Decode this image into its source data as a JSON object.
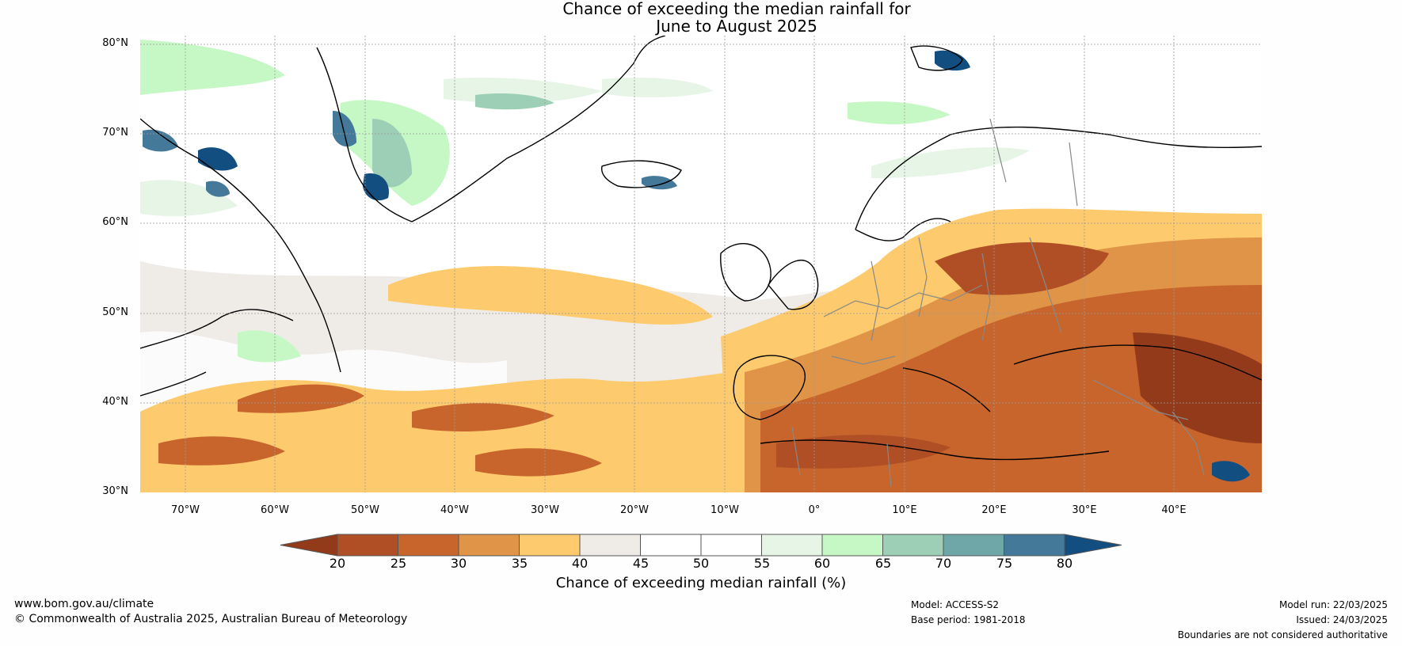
{
  "title": {
    "line1": "Chance of exceeding the median rainfall for",
    "line2": "June to August 2025"
  },
  "lat_labels": [
    "80°N",
    "70°N",
    "60°N",
    "50°N",
    "40°N",
    "30°N"
  ],
  "lon_labels": [
    "70°W",
    "60°W",
    "50°W",
    "40°W",
    "30°W",
    "20°W",
    "10°W",
    "0°",
    "10°E",
    "20°E",
    "30°E",
    "40°E"
  ],
  "colorbar": {
    "ticks": [
      "20",
      "25",
      "30",
      "35",
      "40",
      "45",
      "50",
      "55",
      "60",
      "65",
      "70",
      "75",
      "80"
    ],
    "colors": [
      "#933a1a",
      "#b04f25",
      "#c8652c",
      "#e09448",
      "#fdcb6e",
      "#efece8",
      "#ffffff",
      "#ffffff",
      "#e6f5e6",
      "#c6f8c6",
      "#9ccfb5",
      "#6fa6a8",
      "#44799a",
      "#124e80"
    ],
    "label": "Chance of exceeding median rainfall (%)"
  },
  "footer": {
    "website": "www.bom.gov.au/climate",
    "copyright": "© Commonwealth of Australia 2025, Australian Bureau of Meteorology",
    "model": "Model: ACCESS-S2",
    "base_period": "Base period: 1981-2018",
    "model_run": "Model run: 22/03/2025",
    "issued": "Issued: 24/03/2025",
    "disclaimer": "Boundaries are not considered authoritative"
  }
}
